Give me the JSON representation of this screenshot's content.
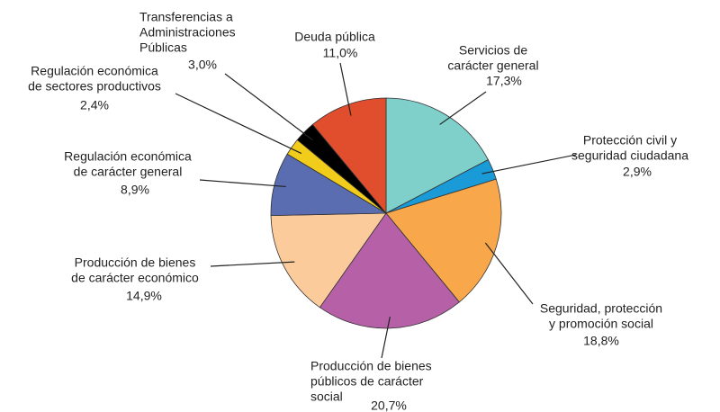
{
  "chart_data": {
    "type": "pie",
    "categories": [
      [
        "Servicios de",
        "carácter general"
      ],
      [
        "Protección civil y",
        "seguridad ciudadana"
      ],
      [
        "Seguridad, protección",
        "y promoción social"
      ],
      [
        "Producción de bienes",
        "públicos de carácter",
        "social"
      ],
      [
        "Producción de bienes",
        "de carácter económico"
      ],
      [
        "Regulación económica",
        "de carácter general"
      ],
      [
        "Regulación económica",
        "de sectores productivos"
      ],
      [
        "Transferencias a",
        "Administraciones",
        "Públicas"
      ],
      [
        "Deuda pública"
      ]
    ],
    "values": [
      17.3,
      2.9,
      18.8,
      20.7,
      14.9,
      8.9,
      2.4,
      3.0,
      11.0
    ],
    "value_labels": [
      "17,3%",
      "2,9%",
      "18,8%",
      "20,7%",
      "14,9%",
      "8,9%",
      "2,4%",
      "3,0%",
      "11,0%"
    ],
    "colors": [
      "#7fcfcb",
      "#1a9ad6",
      "#f8a84a",
      "#b660a8",
      "#fccb9c",
      "#5a6db0",
      "#f2cc1a",
      "#000000",
      "#e04e2e"
    ]
  }
}
